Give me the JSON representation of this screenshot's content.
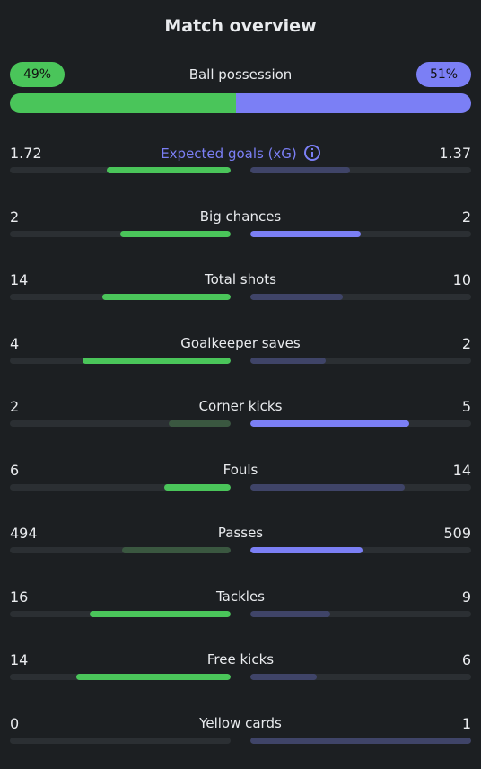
{
  "title": "Match overview",
  "colors": {
    "home": "#4ac55a",
    "home_dim": "#3a5740",
    "away": "#7b7ff5",
    "away_dim": "#3f4468",
    "track": "#2b2f33"
  },
  "possession": {
    "label": "Ball possession",
    "home_text": "49%",
    "away_text": "51%",
    "home": 49,
    "away": 51
  },
  "stats": [
    {
      "label": "Expected goals (xG)",
      "home": "1.72",
      "away": "1.37",
      "home_fill": 0.56,
      "away_fill": 0.45,
      "home_style": "bright",
      "away_style": "dim",
      "accent": true,
      "info_icon": true
    },
    {
      "label": "Big chances",
      "home": "2",
      "away": "2",
      "home_fill": 0.5,
      "away_fill": 0.5,
      "home_style": "bright",
      "away_style": "bright"
    },
    {
      "label": "Total shots",
      "home": "14",
      "away": "10",
      "home_fill": 0.58,
      "away_fill": 0.42,
      "home_style": "bright",
      "away_style": "dim"
    },
    {
      "label": "Goalkeeper saves",
      "home": "4",
      "away": "2",
      "home_fill": 0.67,
      "away_fill": 0.34,
      "home_style": "bright",
      "away_style": "dim"
    },
    {
      "label": "Corner kicks",
      "home": "2",
      "away": "5",
      "home_fill": 0.28,
      "away_fill": 0.72,
      "home_style": "dim",
      "away_style": "bright"
    },
    {
      "label": "Fouls",
      "home": "6",
      "away": "14",
      "home_fill": 0.3,
      "away_fill": 0.7,
      "home_style": "bright",
      "away_style": "dim"
    },
    {
      "label": "Passes",
      "home": "494",
      "away": "509",
      "home_fill": 0.49,
      "away_fill": 0.51,
      "home_style": "dim",
      "away_style": "bright"
    },
    {
      "label": "Tackles",
      "home": "16",
      "away": "9",
      "home_fill": 0.64,
      "away_fill": 0.36,
      "home_style": "bright",
      "away_style": "dim"
    },
    {
      "label": "Free kicks",
      "home": "14",
      "away": "6",
      "home_fill": 0.7,
      "away_fill": 0.3,
      "home_style": "bright",
      "away_style": "dim"
    },
    {
      "label": "Yellow cards",
      "home": "0",
      "away": "1",
      "home_fill": 0.0,
      "away_fill": 1.0,
      "home_style": "dim",
      "away_style": "dim"
    }
  ]
}
